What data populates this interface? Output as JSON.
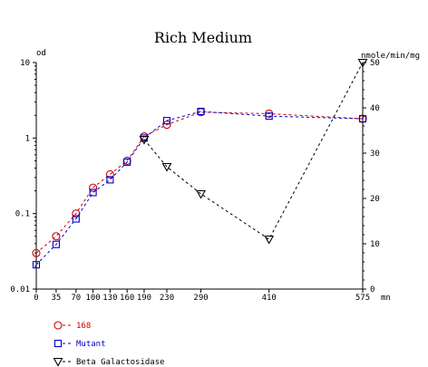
{
  "chart_data": {
    "type": "line",
    "title": "Rich Medium",
    "left_axis_label": "od",
    "right_axis_label": "nmole/min/mg",
    "x_unit_label": "mn",
    "x": [
      0,
      35,
      70,
      100,
      130,
      160,
      190,
      230,
      290,
      410,
      575
    ],
    "x_tick_labels": [
      "0",
      "35",
      "70",
      "100",
      "130",
      "160",
      "190",
      "230",
      "290",
      "410",
      "575"
    ],
    "x_range": [
      0,
      575
    ],
    "left_axis": {
      "scale": "log",
      "range": [
        0.01,
        10
      ],
      "tick_labels": [
        "0.01",
        "0.1",
        "1",
        "10"
      ],
      "ticks": [
        0.01,
        0.1,
        1,
        10
      ]
    },
    "right_axis": {
      "scale": "linear",
      "range": [
        0,
        50
      ],
      "tick_labels": [
        "0",
        "10",
        "20",
        "30",
        "40",
        "50"
      ],
      "ticks": [
        0,
        10,
        20,
        30,
        40,
        50
      ]
    },
    "grid": false,
    "legend_position": "bottom-left",
    "series": [
      {
        "name": "168",
        "axis": "left",
        "color": "#cc0000",
        "marker": "circle",
        "points": [
          [
            0,
            0.03
          ],
          [
            35,
            0.05
          ],
          [
            70,
            0.1
          ],
          [
            100,
            0.22
          ],
          [
            130,
            0.33
          ],
          [
            160,
            0.5
          ],
          [
            190,
            1.05
          ],
          [
            230,
            1.5
          ],
          [
            290,
            2.2
          ],
          [
            410,
            2.1
          ],
          [
            575,
            1.8
          ]
        ]
      },
      {
        "name": "Mutant",
        "axis": "left",
        "color": "#0000cc",
        "marker": "square",
        "points": [
          [
            0,
            0.021
          ],
          [
            35,
            0.039
          ],
          [
            70,
            0.085
          ],
          [
            100,
            0.19
          ],
          [
            130,
            0.28
          ],
          [
            160,
            0.48
          ],
          [
            190,
            1.0
          ],
          [
            230,
            1.7
          ],
          [
            290,
            2.25
          ],
          [
            410,
            1.95
          ],
          [
            575,
            1.8
          ]
        ]
      },
      {
        "name": "Beta Galactosidase",
        "axis": "right",
        "color": "#000000",
        "marker": "triangle-down",
        "points": [
          [
            190,
            33
          ],
          [
            230,
            27
          ],
          [
            290,
            21
          ],
          [
            410,
            11
          ],
          [
            575,
            50
          ]
        ]
      }
    ]
  }
}
